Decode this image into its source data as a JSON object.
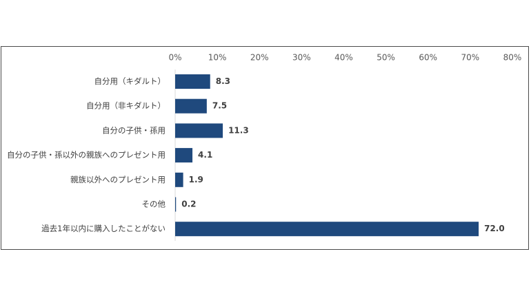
{
  "chart_data": {
    "type": "bar",
    "orientation": "horizontal",
    "categories": [
      "自分用（キダルト）",
      "自分用（非キダルト）",
      "自分の子供・孫用",
      "自分の子供・孫以外の親族へのプレゼント用",
      "親族以外へのプレゼント用",
      "その他",
      "過去1年以内に購入したことがない"
    ],
    "values": [
      8.3,
      7.5,
      11.3,
      4.1,
      1.9,
      0.2,
      72.0
    ],
    "value_labels": [
      "8.3",
      "7.5",
      "11.3",
      "4.1",
      "1.9",
      "0.2",
      "72.0"
    ],
    "xlim": [
      0,
      80
    ],
    "x_ticks": [
      0,
      10,
      20,
      30,
      40,
      50,
      60,
      70,
      80
    ],
    "x_tick_labels": [
      "0%",
      "10%",
      "20%",
      "30%",
      "40%",
      "50%",
      "60%",
      "70%",
      "80%"
    ],
    "x_axis_position": "top",
    "grid": false,
    "legend": "none",
    "bar_color": "#1f497d",
    "title": "",
    "xlabel": "",
    "ylabel": ""
  }
}
